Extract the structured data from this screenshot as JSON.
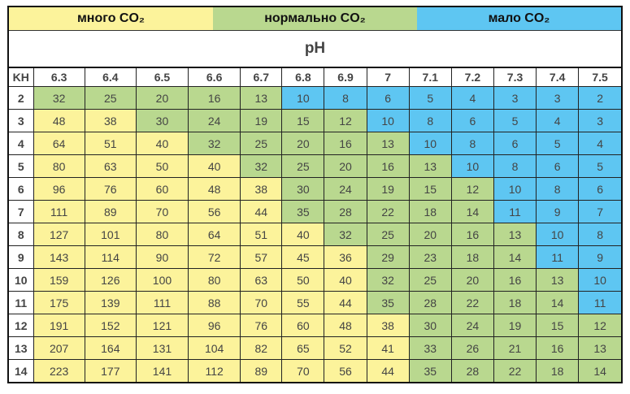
{
  "colors": {
    "y": "#fcf39b",
    "g": "#b9d88f",
    "b": "#5ec6f2"
  },
  "bands": [
    {
      "label": "много CO₂",
      "color": "y"
    },
    {
      "label": "нормально CO₂",
      "color": "g"
    },
    {
      "label": "мало CO₂",
      "color": "b"
    }
  ],
  "ph_label": "pH",
  "kh_label": "KH",
  "ph_values": [
    "6.3",
    "6.4",
    "6.5",
    "6.6",
    "6.7",
    "6.8",
    "6.9",
    "7",
    "7.1",
    "7.2",
    "7.3",
    "7.4",
    "7.5"
  ],
  "rows": [
    {
      "kh": "2",
      "values": [
        "32",
        "25",
        "20",
        "16",
        "13",
        "10",
        "8",
        "6",
        "5",
        "4",
        "3",
        "3",
        "2"
      ],
      "colors": "gggggbbbbbbbb"
    },
    {
      "kh": "3",
      "values": [
        "48",
        "38",
        "30",
        "24",
        "19",
        "15",
        "12",
        "10",
        "8",
        "6",
        "5",
        "4",
        "3"
      ],
      "colors": "yygggggbbbbbb"
    },
    {
      "kh": "4",
      "values": [
        "64",
        "51",
        "40",
        "32",
        "25",
        "20",
        "16",
        "13",
        "10",
        "8",
        "6",
        "5",
        "4"
      ],
      "colors": "yyygggggbbbbb"
    },
    {
      "kh": "5",
      "values": [
        "80",
        "63",
        "50",
        "40",
        "32",
        "25",
        "20",
        "16",
        "13",
        "10",
        "8",
        "6",
        "5"
      ],
      "colors": "yyyygggggbbbb"
    },
    {
      "kh": "6",
      "values": [
        "96",
        "76",
        "60",
        "48",
        "38",
        "30",
        "24",
        "19",
        "15",
        "12",
        "10",
        "8",
        "6"
      ],
      "colors": "yyyyygggggbbb"
    },
    {
      "kh": "7",
      "values": [
        "111",
        "89",
        "70",
        "56",
        "44",
        "35",
        "28",
        "22",
        "18",
        "14",
        "11",
        "9",
        "7"
      ],
      "colors": "yyyyygggggbbb"
    },
    {
      "kh": "8",
      "values": [
        "127",
        "101",
        "80",
        "64",
        "51",
        "40",
        "32",
        "25",
        "20",
        "16",
        "13",
        "10",
        "8"
      ],
      "colors": "yyyyyygggggbb"
    },
    {
      "kh": "9",
      "values": [
        "143",
        "114",
        "90",
        "72",
        "57",
        "45",
        "36",
        "29",
        "23",
        "18",
        "14",
        "11",
        "9"
      ],
      "colors": "yyyyyyyggggbb"
    },
    {
      "kh": "10",
      "values": [
        "159",
        "126",
        "100",
        "80",
        "63",
        "50",
        "40",
        "32",
        "25",
        "20",
        "16",
        "13",
        "10"
      ],
      "colors": "yyyyyyygggggb"
    },
    {
      "kh": "11",
      "values": [
        "175",
        "139",
        "111",
        "88",
        "70",
        "55",
        "44",
        "35",
        "28",
        "22",
        "18",
        "14",
        "11"
      ],
      "colors": "yyyyyyygggggb"
    },
    {
      "kh": "12",
      "values": [
        "191",
        "152",
        "121",
        "96",
        "76",
        "60",
        "48",
        "38",
        "30",
        "24",
        "19",
        "15",
        "12"
      ],
      "colors": "yyyyyyyyggggg"
    },
    {
      "kh": "13",
      "values": [
        "207",
        "164",
        "131",
        "104",
        "82",
        "65",
        "52",
        "41",
        "33",
        "26",
        "21",
        "16",
        "13"
      ],
      "colors": "yyyyyyyyggggg"
    },
    {
      "kh": "14",
      "values": [
        "223",
        "177",
        "141",
        "112",
        "89",
        "70",
        "56",
        "44",
        "35",
        "28",
        "22",
        "18",
        "14"
      ],
      "colors": "yyyyyyyyggggg"
    }
  ]
}
